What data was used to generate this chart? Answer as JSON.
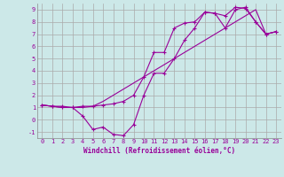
{
  "xlabel": "Windchill (Refroidissement éolien,°C)",
  "background_color": "#cce8e8",
  "grid_color": "#aaaaaa",
  "line_color": "#990099",
  "xlim": [
    -0.5,
    23.5
  ],
  "ylim": [
    -1.5,
    9.5
  ],
  "xticks": [
    0,
    1,
    2,
    3,
    4,
    5,
    6,
    7,
    8,
    9,
    10,
    11,
    12,
    13,
    14,
    15,
    16,
    17,
    18,
    19,
    20,
    21,
    22,
    23
  ],
  "yticks": [
    -1,
    0,
    1,
    2,
    3,
    4,
    5,
    6,
    7,
    8,
    9
  ],
  "line1_x": [
    0,
    1,
    2,
    3,
    4,
    5,
    6,
    7,
    8,
    9,
    10,
    11,
    12,
    13,
    14,
    15,
    16,
    17,
    18,
    19,
    20,
    21,
    22,
    23
  ],
  "line1_y": [
    1.2,
    1.1,
    1.1,
    1.0,
    1.1,
    1.1,
    1.2,
    1.3,
    1.5,
    2.0,
    3.5,
    5.5,
    5.5,
    7.5,
    7.9,
    8.0,
    8.8,
    8.7,
    8.5,
    9.2,
    9.1,
    8.0,
    7.0,
    7.2
  ],
  "line2_x": [
    0,
    1,
    2,
    3,
    4,
    5,
    6,
    7,
    8,
    9,
    10,
    11,
    12,
    13,
    14,
    15,
    16,
    17,
    18,
    19,
    20,
    21,
    22,
    23
  ],
  "line2_y": [
    1.2,
    1.1,
    1.0,
    1.0,
    0.3,
    -0.8,
    -0.6,
    -1.2,
    -1.3,
    -0.4,
    2.0,
    3.8,
    3.8,
    5.0,
    6.5,
    7.5,
    8.8,
    8.7,
    7.5,
    9.0,
    9.2,
    8.0,
    7.0,
    7.2
  ],
  "line3_x": [
    0,
    1,
    2,
    3,
    4,
    5,
    6,
    7,
    8,
    9,
    10,
    11,
    12,
    13,
    14,
    15,
    16,
    17,
    18,
    19,
    20,
    21,
    22,
    23
  ],
  "line3_y": [
    1.2,
    1.1,
    1.0,
    1.0,
    1.0,
    1.1,
    1.5,
    2.0,
    2.5,
    3.0,
    3.5,
    4.0,
    4.5,
    5.0,
    5.5,
    6.0,
    6.5,
    7.0,
    7.5,
    8.0,
    8.5,
    9.0,
    7.0,
    7.2
  ],
  "tick_fontsize": 5,
  "xlabel_fontsize": 5.5
}
